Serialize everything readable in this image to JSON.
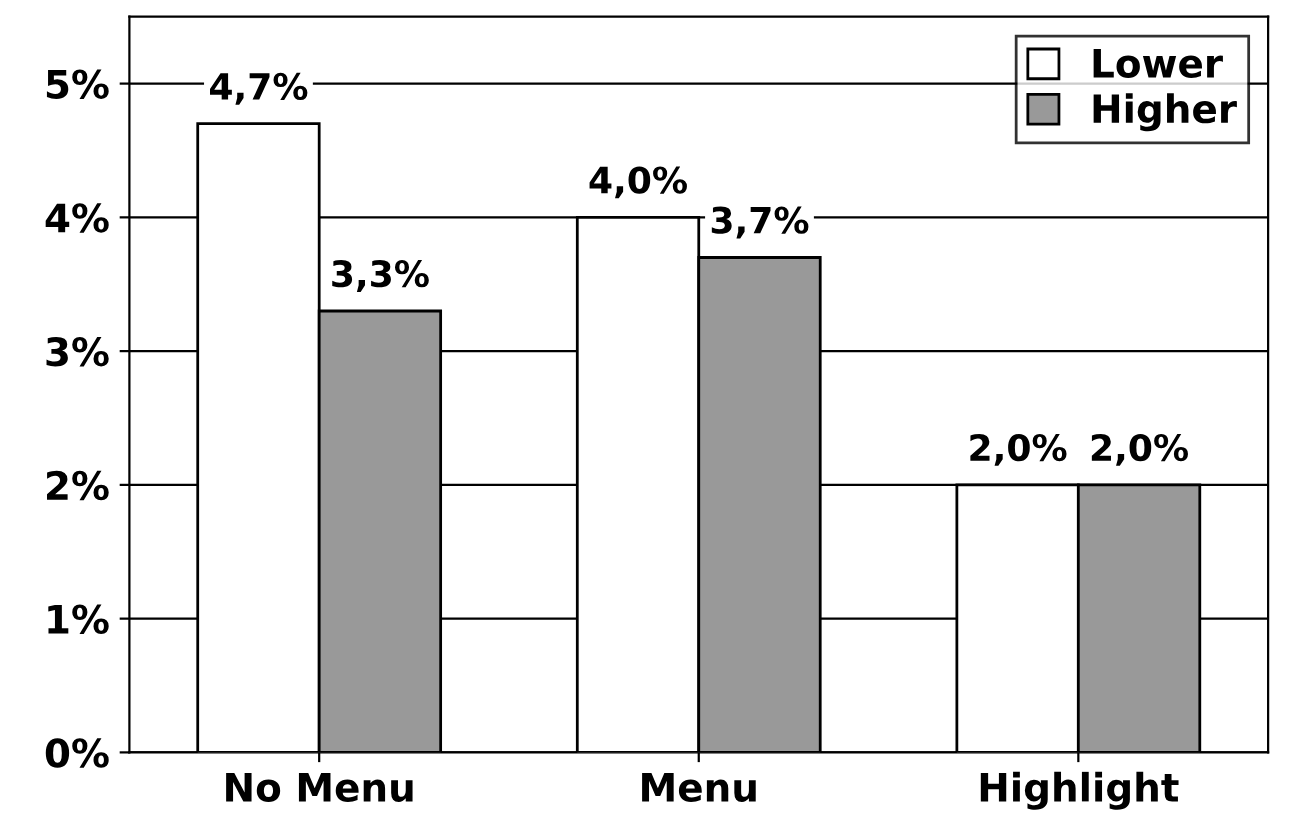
{
  "chart_data": {
    "type": "bar",
    "categories": [
      "No Menu",
      "Menu",
      "Highlight"
    ],
    "series": [
      {
        "name": "Lower",
        "color": "#ffffff",
        "values": [
          4.7,
          4.0,
          2.0
        ],
        "value_labels": [
          "4,7%",
          "4,0%",
          "2,0%"
        ]
      },
      {
        "name": "Higher",
        "color": "#999999",
        "values": [
          3.3,
          3.7,
          2.0
        ],
        "value_labels": [
          "3,3%",
          "3,7%",
          "2,0%"
        ]
      }
    ],
    "ylim": [
      0,
      5.5
    ],
    "yticks": [
      {
        "value": 0,
        "label": "0%"
      },
      {
        "value": 1,
        "label": "1%"
      },
      {
        "value": 2,
        "label": "2%"
      },
      {
        "value": 3,
        "label": "3%"
      },
      {
        "value": 4,
        "label": "4%"
      },
      {
        "value": 5,
        "label": "5%"
      }
    ],
    "grid": "y",
    "legend": "top right"
  }
}
